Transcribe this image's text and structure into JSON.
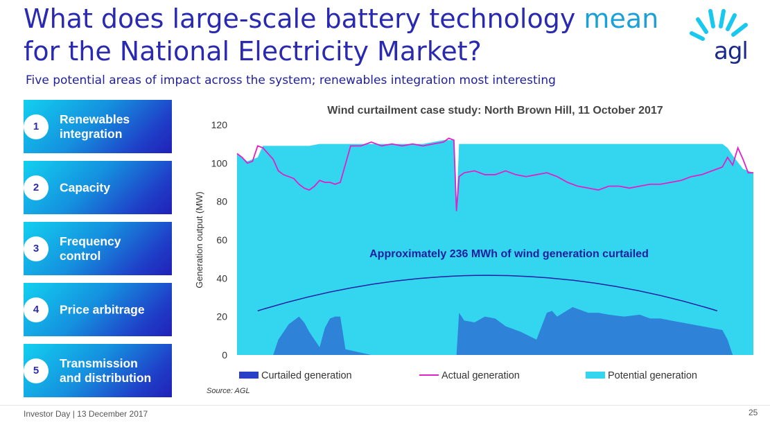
{
  "slide": {
    "title_main": "What does large-scale battery technology ",
    "title_accent": "mean",
    "title_line2": "for the National Electricity Market?",
    "subtitle": "Five potential areas of impact across the system; renewables integration most interesting",
    "logo_text": "agl",
    "footer": "Investor Day | 13 December 2017",
    "page_number": "25",
    "source": "Source: AGL"
  },
  "areas": [
    {
      "num": "1",
      "label": "Renewables\nintegration"
    },
    {
      "num": "2",
      "label": "Capacity"
    },
    {
      "num": "3",
      "label": "Frequency\ncontrol"
    },
    {
      "num": "4",
      "label": "Price arbitrage"
    },
    {
      "num": "5",
      "label": "Transmission\nand distribution"
    }
  ],
  "colors": {
    "potential": "#33d6ee",
    "actual": "#e020c8",
    "curtailed": "#2a3fc8",
    "annotation": "#1e1ea0"
  },
  "chart_data": {
    "type": "area",
    "title": "Wind curtailment case study: North Brown Hill, 11 October 2017",
    "xlabel": "",
    "ylabel": "Generation output (MW)",
    "ylim": [
      0,
      120
    ],
    "yticks": [
      0,
      20,
      40,
      60,
      80,
      100,
      120
    ],
    "annotation": "Approximately 236 MWh of wind generation curtailed",
    "legend": [
      "Curtailed generation",
      "Actual generation",
      "Potential generation"
    ],
    "legend_position": "bottom",
    "x_range": [
      0,
      100
    ],
    "series": [
      {
        "name": "Potential generation",
        "x": [
          0,
          2,
          4,
          5,
          6,
          8,
          10,
          12,
          14,
          16,
          18,
          20,
          22,
          24,
          26,
          28,
          30,
          32,
          34,
          36,
          38,
          40,
          42,
          42.5,
          43,
          44,
          46,
          48,
          50,
          52,
          54,
          56,
          58,
          60,
          62,
          64,
          66,
          68,
          70,
          72,
          74,
          76,
          78,
          80,
          82,
          84,
          86,
          88,
          90,
          92,
          94,
          95,
          96,
          98,
          100
        ],
        "values": [
          105,
          101,
          103,
          109,
          109,
          109,
          109,
          109,
          109,
          110,
          110,
          110,
          110,
          110,
          110,
          110,
          110,
          110,
          110,
          110,
          111,
          112,
          112,
          76,
          110,
          110,
          110,
          110,
          110,
          110,
          110,
          110,
          110,
          110,
          110,
          110,
          110,
          110,
          110,
          110,
          110,
          110,
          110,
          110,
          110,
          110,
          110,
          110,
          110,
          110,
          110,
          108,
          104,
          97,
          95
        ]
      },
      {
        "name": "Actual generation",
        "x": [
          0,
          1,
          2,
          3,
          4,
          5,
          6,
          7,
          8,
          9,
          10,
          11,
          12,
          13,
          14,
          15,
          16,
          17,
          18,
          19,
          20,
          22,
          24,
          26,
          28,
          30,
          32,
          34,
          36,
          38,
          40,
          41,
          42,
          42.5,
          43,
          44,
          46,
          48,
          50,
          52,
          54,
          56,
          58,
          60,
          62,
          64,
          66,
          68,
          70,
          72,
          74,
          76,
          78,
          80,
          82,
          84,
          86,
          88,
          90,
          92,
          94,
          95,
          96,
          97,
          98,
          99,
          100
        ],
        "values": [
          105,
          103,
          100,
          101,
          109,
          108,
          105,
          102,
          96,
          94,
          93,
          92,
          89,
          87,
          86,
          88,
          91,
          90,
          90,
          89,
          90,
          109,
          109,
          111,
          109,
          110,
          109,
          110,
          109,
          110,
          111,
          113,
          112,
          75,
          93,
          95,
          96,
          94,
          94,
          96,
          94,
          93,
          94,
          95,
          93,
          90,
          88,
          87,
          86,
          88,
          88,
          87,
          88,
          89,
          89,
          90,
          91,
          93,
          94,
          96,
          98,
          103,
          99,
          108,
          102,
          95,
          95
        ]
      },
      {
        "name": "Curtailed generation",
        "x": [
          0,
          7,
          8,
          10,
          12,
          13,
          14,
          16,
          17,
          18,
          19,
          20,
          21,
          26,
          40,
          42,
          42.5,
          43,
          44,
          46,
          48,
          50,
          52,
          55,
          58,
          60,
          61,
          62,
          65,
          66,
          68,
          70,
          72,
          75,
          78,
          80,
          82,
          84,
          86,
          88,
          90,
          92,
          94,
          95,
          96,
          100
        ],
        "values": [
          0,
          0,
          8,
          16,
          20,
          17,
          12,
          4,
          14,
          19,
          20,
          20,
          3,
          0,
          0,
          0,
          0,
          22,
          18,
          17,
          20,
          19,
          15,
          12,
          8,
          22,
          23,
          20,
          25,
          24,
          22,
          22,
          21,
          20,
          21,
          19,
          19,
          18,
          17,
          16,
          15,
          14,
          13,
          8,
          0,
          0
        ]
      }
    ]
  }
}
